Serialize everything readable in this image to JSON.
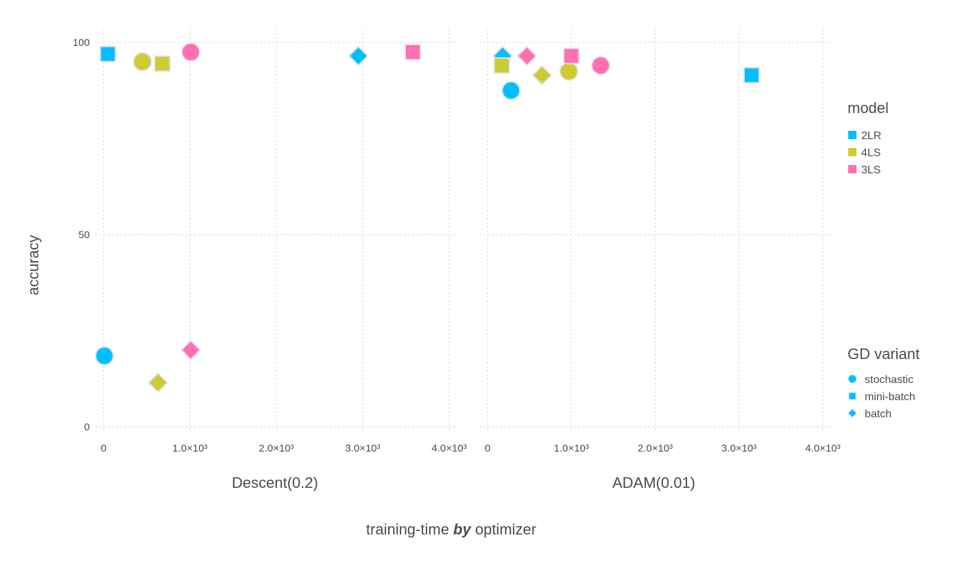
{
  "chart_data": {
    "type": "scatter",
    "title": "",
    "ylabel": "accuracy",
    "xlabel_parts": {
      "prefix": "training-time ",
      "emph": "by",
      "suffix": " optimizer"
    },
    "ylim": [
      0,
      100
    ],
    "xlim": [
      0,
      4000
    ],
    "y_ticks": [
      {
        "value": 0,
        "label": "0"
      },
      {
        "value": 50,
        "label": "50"
      },
      {
        "value": 100,
        "label": "100"
      }
    ],
    "x_ticks": [
      {
        "value": 0,
        "label": "0"
      },
      {
        "value": 1000,
        "label": "1.0×10³"
      },
      {
        "value": 2000,
        "label": "2.0×10³"
      },
      {
        "value": 3000,
        "label": "3.0×10³"
      },
      {
        "value": 4000,
        "label": "4.0×10³"
      }
    ],
    "grid": true,
    "legend_placement": "right",
    "colors": {
      "2LR": "#00bfff",
      "4LS": "#cccc33",
      "3LS": "#ff6fb2"
    },
    "legend_color": {
      "title": "model",
      "entries": [
        {
          "label": "2LR",
          "color": "#00bfff"
        },
        {
          "label": "4LS",
          "color": "#cccc33"
        },
        {
          "label": "3LS",
          "color": "#ff6fb2"
        }
      ]
    },
    "legend_shape": {
      "title": "GD variant",
      "entries": [
        {
          "label": "stochastic",
          "shape": "circle"
        },
        {
          "label": "mini-batch",
          "shape": "square"
        },
        {
          "label": "batch",
          "shape": "diamond"
        }
      ]
    },
    "facets": [
      {
        "label": "Descent(0.2)",
        "points": [
          {
            "model": "2LR",
            "variant": "stochastic",
            "x": 10,
            "y": 18.5
          },
          {
            "model": "2LR",
            "variant": "mini-batch",
            "x": 50,
            "y": 97
          },
          {
            "model": "2LR",
            "variant": "batch",
            "x": 2950,
            "y": 96.5
          },
          {
            "model": "4LS",
            "variant": "stochastic",
            "x": 450,
            "y": 95
          },
          {
            "model": "4LS",
            "variant": "mini-batch",
            "x": 680,
            "y": 94.5
          },
          {
            "model": "4LS",
            "variant": "batch",
            "x": 630,
            "y": 11.5
          },
          {
            "model": "3LS",
            "variant": "stochastic",
            "x": 1010,
            "y": 97.5
          },
          {
            "model": "3LS",
            "variant": "mini-batch",
            "x": 3580,
            "y": 97.5
          },
          {
            "model": "3LS",
            "variant": "batch",
            "x": 1010,
            "y": 20
          }
        ]
      },
      {
        "label": "ADAM(0.01)",
        "points": [
          {
            "model": "2LR",
            "variant": "stochastic",
            "x": 280,
            "y": 87.5
          },
          {
            "model": "2LR",
            "variant": "mini-batch",
            "x": 3150,
            "y": 91.5
          },
          {
            "model": "2LR",
            "variant": "batch",
            "x": 180,
            "y": 96.5
          },
          {
            "model": "4LS",
            "variant": "stochastic",
            "x": 970,
            "y": 92.5
          },
          {
            "model": "4LS",
            "variant": "mini-batch",
            "x": 170,
            "y": 94
          },
          {
            "model": "4LS",
            "variant": "batch",
            "x": 650,
            "y": 91.5
          },
          {
            "model": "3LS",
            "variant": "stochastic",
            "x": 1350,
            "y": 94
          },
          {
            "model": "3LS",
            "variant": "mini-batch",
            "x": 1000,
            "y": 96.5
          },
          {
            "model": "3LS",
            "variant": "batch",
            "x": 470,
            "y": 96.5
          }
        ]
      }
    ]
  }
}
